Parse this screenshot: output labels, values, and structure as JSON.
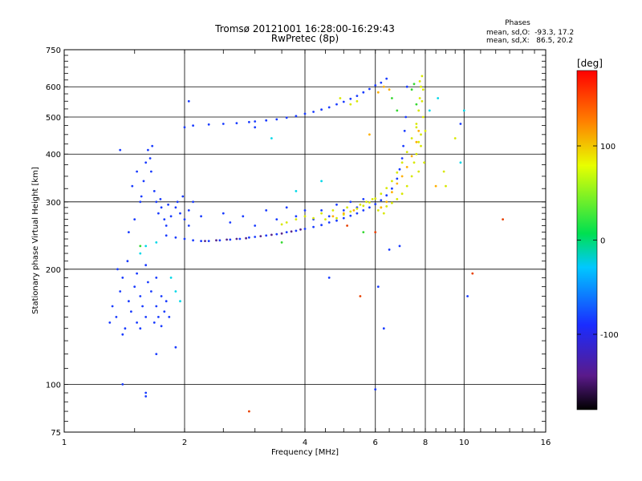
{
  "header": {
    "title_line1": "Tromsø 20121001 16:28:00-16:29:43",
    "title_line2": "RwPretec (8p)",
    "stats_title": "Phases",
    "stats_o": "mean, sd,O:  -93.3, 17.2",
    "stats_x": "mean, sd,X:   86.5, 20.2"
  },
  "colorbar": {
    "label": "[deg]",
    "min": -180,
    "max": 180,
    "ticks": [
      100,
      0,
      -100
    ],
    "tick_labels": [
      "100",
      "0",
      "-100"
    ]
  },
  "chart_data": {
    "type": "scatter",
    "title": "Tromsø 20121001 16:28:00-16:29:43",
    "subtitle": "RwPretec (8p)",
    "xlabel": "Frequency [MHz]",
    "ylabel": "Stationary phase Virtual Height [km]",
    "x_scale": "log",
    "y_scale": "log",
    "xlim": [
      1,
      16
    ],
    "ylim": [
      75,
      750
    ],
    "x_ticks": [
      1,
      2,
      4,
      6,
      8,
      10,
      16
    ],
    "x_tick_labels": [
      "1",
      "2",
      "4",
      "6",
      "8",
      "10",
      "16"
    ],
    "y_ticks": [
      75,
      100,
      200,
      300,
      400,
      500,
      600,
      750
    ],
    "y_tick_labels": [
      "75",
      "100",
      "200",
      "300",
      "400",
      "500",
      "600",
      "750"
    ],
    "grid": true,
    "color_variable": "phase [deg]",
    "series": [
      {
        "points": [
          [
            1.3,
            145
          ],
          [
            1.32,
            160
          ],
          [
            1.35,
            150
          ],
          [
            1.38,
            175
          ],
          [
            1.4,
            190
          ],
          [
            1.42,
            140
          ],
          [
            1.45,
            165
          ],
          [
            1.47,
            155
          ],
          [
            1.5,
            180
          ],
          [
            1.52,
            145
          ],
          [
            1.55,
            170
          ],
          [
            1.57,
            160
          ],
          [
            1.6,
            150
          ],
          [
            1.62,
            185
          ],
          [
            1.65,
            175
          ],
          [
            1.68,
            145
          ],
          [
            1.7,
            160
          ],
          [
            1.72,
            150
          ],
          [
            1.75,
            170
          ],
          [
            1.78,
            155
          ],
          [
            1.8,
            165
          ],
          [
            1.83,
            150
          ],
          [
            1.36,
            200
          ],
          [
            1.44,
            210
          ],
          [
            1.52,
            195
          ],
          [
            1.6,
            205
          ],
          [
            1.7,
            190
          ],
          [
            1.4,
            135
          ],
          [
            1.55,
            140
          ],
          [
            1.75,
            142
          ],
          [
            1.45,
            250
          ],
          [
            1.5,
            270
          ],
          [
            1.55,
            300
          ],
          [
            1.58,
            340
          ],
          [
            1.6,
            380
          ],
          [
            1.62,
            410
          ],
          [
            1.65,
            360
          ],
          [
            1.68,
            320
          ],
          [
            1.7,
            300
          ],
          [
            1.72,
            280
          ],
          [
            1.75,
            290
          ],
          [
            1.78,
            270
          ],
          [
            1.8,
            260
          ],
          [
            1.85,
            275
          ],
          [
            1.9,
            290
          ],
          [
            1.95,
            280
          ],
          [
            2.0,
            270
          ],
          [
            2.05,
            285
          ],
          [
            2.1,
            300
          ],
          [
            2.2,
            275
          ],
          [
            1.48,
            330
          ],
          [
            1.52,
            360
          ],
          [
            1.56,
            310
          ],
          [
            1.64,
            390
          ],
          [
            1.66,
            420
          ],
          [
            1.74,
            305
          ],
          [
            1.82,
            295
          ],
          [
            1.92,
            300
          ],
          [
            1.98,
            310
          ],
          [
            2.05,
            260
          ],
          [
            1.8,
            245
          ],
          [
            1.9,
            242
          ],
          [
            2.0,
            240
          ],
          [
            2.1,
            238
          ],
          [
            2.2,
            237
          ],
          [
            2.3,
            237
          ],
          [
            2.45,
            238
          ],
          [
            2.6,
            239
          ],
          [
            2.75,
            240
          ],
          [
            2.9,
            242
          ],
          [
            3.0,
            243
          ],
          [
            3.2,
            245
          ],
          [
            3.4,
            247
          ],
          [
            3.6,
            250
          ],
          [
            3.8,
            252
          ],
          [
            4.0,
            255
          ],
          [
            4.2,
            258
          ],
          [
            4.4,
            261
          ],
          [
            4.6,
            265
          ],
          [
            4.8,
            268
          ],
          [
            5.0,
            272
          ],
          [
            5.2,
            276
          ],
          [
            5.4,
            280
          ],
          [
            5.6,
            285
          ],
          [
            5.8,
            290
          ],
          [
            6.0,
            296
          ],
          [
            6.2,
            303
          ],
          [
            6.4,
            312
          ],
          [
            6.6,
            325
          ],
          [
            6.8,
            345
          ],
          [
            6.9,
            365
          ],
          [
            7.0,
            390
          ],
          [
            7.05,
            420
          ],
          [
            7.1,
            460
          ],
          [
            7.15,
            500
          ],
          [
            2.5,
            280
          ],
          [
            2.6,
            265
          ],
          [
            2.8,
            275
          ],
          [
            3.0,
            260
          ],
          [
            3.2,
            285
          ],
          [
            3.4,
            270
          ],
          [
            3.6,
            290
          ],
          [
            3.8,
            275
          ],
          [
            4.0,
            285
          ],
          [
            4.2,
            270
          ],
          [
            4.4,
            285
          ],
          [
            4.6,
            275
          ],
          [
            4.8,
            295
          ],
          [
            5.0,
            285
          ],
          [
            5.2,
            300
          ],
          [
            5.4,
            290
          ],
          [
            5.6,
            305
          ],
          [
            2.0,
            470
          ],
          [
            2.1,
            475
          ],
          [
            2.3,
            478
          ],
          [
            2.5,
            480
          ],
          [
            2.7,
            482
          ],
          [
            2.9,
            485
          ],
          [
            3.0,
            487
          ],
          [
            3.2,
            490
          ],
          [
            3.4,
            493
          ],
          [
            3.6,
            498
          ],
          [
            3.8,
            503
          ],
          [
            4.0,
            510
          ],
          [
            4.2,
            516
          ],
          [
            4.4,
            523
          ],
          [
            4.6,
            530
          ],
          [
            4.8,
            540
          ],
          [
            5.0,
            548
          ],
          [
            5.2,
            558
          ],
          [
            5.4,
            568
          ],
          [
            5.6,
            580
          ],
          [
            5.8,
            592
          ],
          [
            6.0,
            605
          ],
          [
            6.2,
            615
          ],
          [
            6.4,
            630
          ],
          [
            1.38,
            410
          ],
          [
            1.4,
            100
          ],
          [
            1.6,
            95
          ],
          [
            1.6,
            93
          ],
          [
            1.7,
            120
          ],
          [
            1.9,
            125
          ],
          [
            2.05,
            550
          ],
          [
            3.0,
            470
          ],
          [
            4.6,
            190
          ],
          [
            6.0,
            97
          ],
          [
            6.1,
            180
          ],
          [
            6.3,
            140
          ],
          [
            6.5,
            225
          ],
          [
            6.9,
            230
          ],
          [
            7.2,
            600
          ],
          [
            9.8,
            480
          ],
          [
            10.2,
            170
          ]
        ],
        "color": "#1a3cff",
        "phase_deg": -95
      },
      {
        "points": [
          [
            2.25,
            237
          ],
          [
            2.4,
            238
          ],
          [
            2.55,
            239
          ],
          [
            2.7,
            240
          ],
          [
            2.85,
            241
          ],
          [
            3.1,
            244
          ],
          [
            3.3,
            246
          ],
          [
            3.5,
            248
          ],
          [
            3.7,
            251
          ],
          [
            3.9,
            254
          ]
        ],
        "color": "#5a2a8a",
        "phase_deg": -150
      },
      {
        "points": [
          [
            4.2,
            272
          ],
          [
            4.5,
            270
          ],
          [
            4.8,
            272
          ],
          [
            5.0,
            278
          ],
          [
            5.2,
            283
          ],
          [
            5.4,
            288
          ],
          [
            5.6,
            293
          ],
          [
            5.8,
            299
          ],
          [
            6.0,
            306
          ],
          [
            6.2,
            315
          ],
          [
            6.4,
            326
          ],
          [
            6.6,
            340
          ],
          [
            6.8,
            358
          ],
          [
            7.0,
            380
          ],
          [
            7.2,
            405
          ],
          [
            7.4,
            440
          ],
          [
            7.6,
            480
          ],
          [
            7.7,
            520
          ],
          [
            7.75,
            560
          ],
          [
            7.8,
            600
          ],
          [
            7.85,
            640
          ],
          [
            7.7,
            430
          ],
          [
            7.6,
            400
          ],
          [
            7.8,
            450
          ],
          [
            7.9,
            500
          ],
          [
            7.85,
            550
          ],
          [
            7.75,
            620
          ],
          [
            7.7,
            360
          ],
          [
            7.5,
            380
          ],
          [
            7.4,
            350
          ],
          [
            7.2,
            330
          ],
          [
            7.0,
            315
          ],
          [
            6.8,
            305
          ],
          [
            6.6,
            298
          ],
          [
            6.4,
            292
          ],
          [
            7.6,
            470
          ],
          [
            7.8,
            420
          ],
          [
            7.95,
            380
          ],
          [
            8.0,
            460
          ],
          [
            7.9,
            590
          ],
          [
            3.6,
            265
          ],
          [
            3.8,
            270
          ],
          [
            4.0,
            275
          ],
          [
            4.4,
            280
          ],
          [
            4.7,
            285
          ],
          [
            5.1,
            290
          ],
          [
            5.5,
            295
          ],
          [
            3.5,
            262
          ],
          [
            5.9,
            305
          ],
          [
            6.1,
            285
          ],
          [
            6.3,
            280
          ],
          [
            6.2,
            290
          ],
          [
            5.7,
            300
          ],
          [
            4.9,
            560
          ],
          [
            5.2,
            540
          ],
          [
            5.4,
            550
          ],
          [
            9.0,
            330
          ],
          [
            9.5,
            440
          ],
          [
            8.9,
            360
          ]
        ],
        "color": "#d8e800",
        "phase_deg": 95
      },
      {
        "points": [
          [
            6.2,
            290
          ],
          [
            6.4,
            300
          ],
          [
            6.6,
            318
          ],
          [
            6.8,
            335
          ],
          [
            7.0,
            350
          ],
          [
            7.2,
            370
          ],
          [
            7.4,
            395
          ],
          [
            7.6,
            430
          ],
          [
            7.7,
            460
          ],
          [
            6.1,
            580
          ],
          [
            6.3,
            600
          ],
          [
            6.5,
            590
          ],
          [
            5.8,
            450
          ],
          [
            8.5,
            330
          ],
          [
            4.7,
            275
          ],
          [
            5.0,
            280
          ],
          [
            5.3,
            285
          ]
        ],
        "color": "#ffb000",
        "phase_deg": 120
      },
      {
        "points": [
          [
            7.5,
            610
          ],
          [
            7.6,
            540
          ],
          [
            7.4,
            590
          ],
          [
            6.8,
            520
          ],
          [
            5.6,
            250
          ],
          [
            3.5,
            235
          ],
          [
            1.55,
            230
          ],
          [
            6.6,
            560
          ]
        ],
        "color": "#34d830",
        "phase_deg": 20
      },
      {
        "points": [
          [
            1.55,
            220
          ],
          [
            1.6,
            230
          ],
          [
            1.7,
            235
          ],
          [
            1.85,
            190
          ],
          [
            1.9,
            175
          ],
          [
            1.95,
            165
          ],
          [
            3.3,
            440
          ],
          [
            8.2,
            520
          ],
          [
            8.6,
            560
          ],
          [
            10.0,
            520
          ],
          [
            9.8,
            380
          ],
          [
            3.8,
            320
          ],
          [
            4.4,
            340
          ]
        ],
        "color": "#00d8e8",
        "phase_deg": -30
      },
      {
        "points": [
          [
            10.5,
            195
          ],
          [
            12.5,
            270
          ],
          [
            2.9,
            85
          ],
          [
            6.0,
            250
          ],
          [
            5.1,
            260
          ],
          [
            5.5,
            170
          ]
        ],
        "color": "#e84000",
        "phase_deg": 150
      }
    ]
  }
}
